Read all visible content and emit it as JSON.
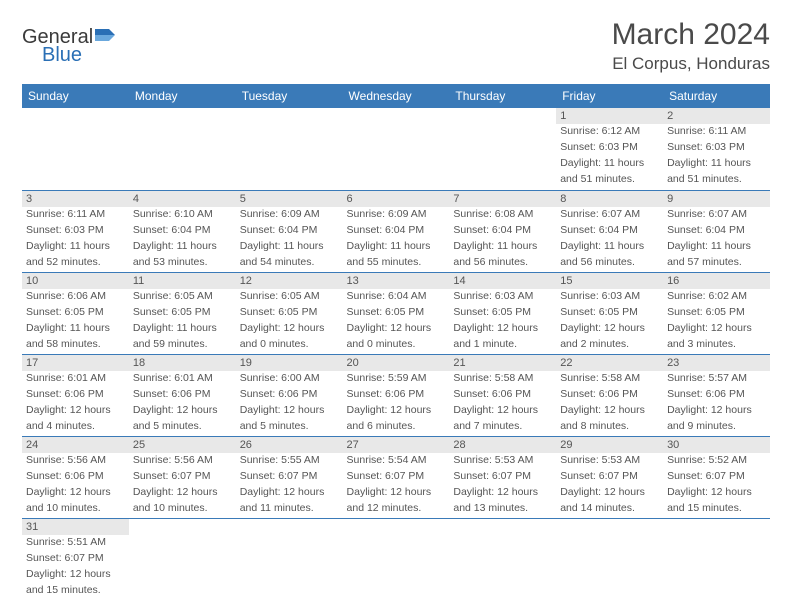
{
  "brand": {
    "part1": "General",
    "part2": "Blue"
  },
  "title": "March 2024",
  "location": "El Corpus, Honduras",
  "colors": {
    "header_bg": "#3a7ab8",
    "header_text": "#ffffff",
    "daynum_bg": "#e8e8e8",
    "text": "#555555",
    "rule": "#3a7ab8"
  },
  "weekdays": [
    "Sunday",
    "Monday",
    "Tuesday",
    "Wednesday",
    "Thursday",
    "Friday",
    "Saturday"
  ],
  "weeks": [
    [
      {
        "n": ""
      },
      {
        "n": ""
      },
      {
        "n": ""
      },
      {
        "n": ""
      },
      {
        "n": ""
      },
      {
        "n": "1",
        "sr": "Sunrise: 6:12 AM",
        "ss": "Sunset: 6:03 PM",
        "dl1": "Daylight: 11 hours",
        "dl2": "and 51 minutes."
      },
      {
        "n": "2",
        "sr": "Sunrise: 6:11 AM",
        "ss": "Sunset: 6:03 PM",
        "dl1": "Daylight: 11 hours",
        "dl2": "and 51 minutes."
      }
    ],
    [
      {
        "n": "3",
        "sr": "Sunrise: 6:11 AM",
        "ss": "Sunset: 6:03 PM",
        "dl1": "Daylight: 11 hours",
        "dl2": "and 52 minutes."
      },
      {
        "n": "4",
        "sr": "Sunrise: 6:10 AM",
        "ss": "Sunset: 6:04 PM",
        "dl1": "Daylight: 11 hours",
        "dl2": "and 53 minutes."
      },
      {
        "n": "5",
        "sr": "Sunrise: 6:09 AM",
        "ss": "Sunset: 6:04 PM",
        "dl1": "Daylight: 11 hours",
        "dl2": "and 54 minutes."
      },
      {
        "n": "6",
        "sr": "Sunrise: 6:09 AM",
        "ss": "Sunset: 6:04 PM",
        "dl1": "Daylight: 11 hours",
        "dl2": "and 55 minutes."
      },
      {
        "n": "7",
        "sr": "Sunrise: 6:08 AM",
        "ss": "Sunset: 6:04 PM",
        "dl1": "Daylight: 11 hours",
        "dl2": "and 56 minutes."
      },
      {
        "n": "8",
        "sr": "Sunrise: 6:07 AM",
        "ss": "Sunset: 6:04 PM",
        "dl1": "Daylight: 11 hours",
        "dl2": "and 56 minutes."
      },
      {
        "n": "9",
        "sr": "Sunrise: 6:07 AM",
        "ss": "Sunset: 6:04 PM",
        "dl1": "Daylight: 11 hours",
        "dl2": "and 57 minutes."
      }
    ],
    [
      {
        "n": "10",
        "sr": "Sunrise: 6:06 AM",
        "ss": "Sunset: 6:05 PM",
        "dl1": "Daylight: 11 hours",
        "dl2": "and 58 minutes."
      },
      {
        "n": "11",
        "sr": "Sunrise: 6:05 AM",
        "ss": "Sunset: 6:05 PM",
        "dl1": "Daylight: 11 hours",
        "dl2": "and 59 minutes."
      },
      {
        "n": "12",
        "sr": "Sunrise: 6:05 AM",
        "ss": "Sunset: 6:05 PM",
        "dl1": "Daylight: 12 hours",
        "dl2": "and 0 minutes."
      },
      {
        "n": "13",
        "sr": "Sunrise: 6:04 AM",
        "ss": "Sunset: 6:05 PM",
        "dl1": "Daylight: 12 hours",
        "dl2": "and 0 minutes."
      },
      {
        "n": "14",
        "sr": "Sunrise: 6:03 AM",
        "ss": "Sunset: 6:05 PM",
        "dl1": "Daylight: 12 hours",
        "dl2": "and 1 minute."
      },
      {
        "n": "15",
        "sr": "Sunrise: 6:03 AM",
        "ss": "Sunset: 6:05 PM",
        "dl1": "Daylight: 12 hours",
        "dl2": "and 2 minutes."
      },
      {
        "n": "16",
        "sr": "Sunrise: 6:02 AM",
        "ss": "Sunset: 6:05 PM",
        "dl1": "Daylight: 12 hours",
        "dl2": "and 3 minutes."
      }
    ],
    [
      {
        "n": "17",
        "sr": "Sunrise: 6:01 AM",
        "ss": "Sunset: 6:06 PM",
        "dl1": "Daylight: 12 hours",
        "dl2": "and 4 minutes."
      },
      {
        "n": "18",
        "sr": "Sunrise: 6:01 AM",
        "ss": "Sunset: 6:06 PM",
        "dl1": "Daylight: 12 hours",
        "dl2": "and 5 minutes."
      },
      {
        "n": "19",
        "sr": "Sunrise: 6:00 AM",
        "ss": "Sunset: 6:06 PM",
        "dl1": "Daylight: 12 hours",
        "dl2": "and 5 minutes."
      },
      {
        "n": "20",
        "sr": "Sunrise: 5:59 AM",
        "ss": "Sunset: 6:06 PM",
        "dl1": "Daylight: 12 hours",
        "dl2": "and 6 minutes."
      },
      {
        "n": "21",
        "sr": "Sunrise: 5:58 AM",
        "ss": "Sunset: 6:06 PM",
        "dl1": "Daylight: 12 hours",
        "dl2": "and 7 minutes."
      },
      {
        "n": "22",
        "sr": "Sunrise: 5:58 AM",
        "ss": "Sunset: 6:06 PM",
        "dl1": "Daylight: 12 hours",
        "dl2": "and 8 minutes."
      },
      {
        "n": "23",
        "sr": "Sunrise: 5:57 AM",
        "ss": "Sunset: 6:06 PM",
        "dl1": "Daylight: 12 hours",
        "dl2": "and 9 minutes."
      }
    ],
    [
      {
        "n": "24",
        "sr": "Sunrise: 5:56 AM",
        "ss": "Sunset: 6:06 PM",
        "dl1": "Daylight: 12 hours",
        "dl2": "and 10 minutes."
      },
      {
        "n": "25",
        "sr": "Sunrise: 5:56 AM",
        "ss": "Sunset: 6:07 PM",
        "dl1": "Daylight: 12 hours",
        "dl2": "and 10 minutes."
      },
      {
        "n": "26",
        "sr": "Sunrise: 5:55 AM",
        "ss": "Sunset: 6:07 PM",
        "dl1": "Daylight: 12 hours",
        "dl2": "and 11 minutes."
      },
      {
        "n": "27",
        "sr": "Sunrise: 5:54 AM",
        "ss": "Sunset: 6:07 PM",
        "dl1": "Daylight: 12 hours",
        "dl2": "and 12 minutes."
      },
      {
        "n": "28",
        "sr": "Sunrise: 5:53 AM",
        "ss": "Sunset: 6:07 PM",
        "dl1": "Daylight: 12 hours",
        "dl2": "and 13 minutes."
      },
      {
        "n": "29",
        "sr": "Sunrise: 5:53 AM",
        "ss": "Sunset: 6:07 PM",
        "dl1": "Daylight: 12 hours",
        "dl2": "and 14 minutes."
      },
      {
        "n": "30",
        "sr": "Sunrise: 5:52 AM",
        "ss": "Sunset: 6:07 PM",
        "dl1": "Daylight: 12 hours",
        "dl2": "and 15 minutes."
      }
    ],
    [
      {
        "n": "31",
        "sr": "Sunrise: 5:51 AM",
        "ss": "Sunset: 6:07 PM",
        "dl1": "Daylight: 12 hours",
        "dl2": "and 15 minutes."
      },
      {
        "n": ""
      },
      {
        "n": ""
      },
      {
        "n": ""
      },
      {
        "n": ""
      },
      {
        "n": ""
      },
      {
        "n": ""
      }
    ]
  ]
}
